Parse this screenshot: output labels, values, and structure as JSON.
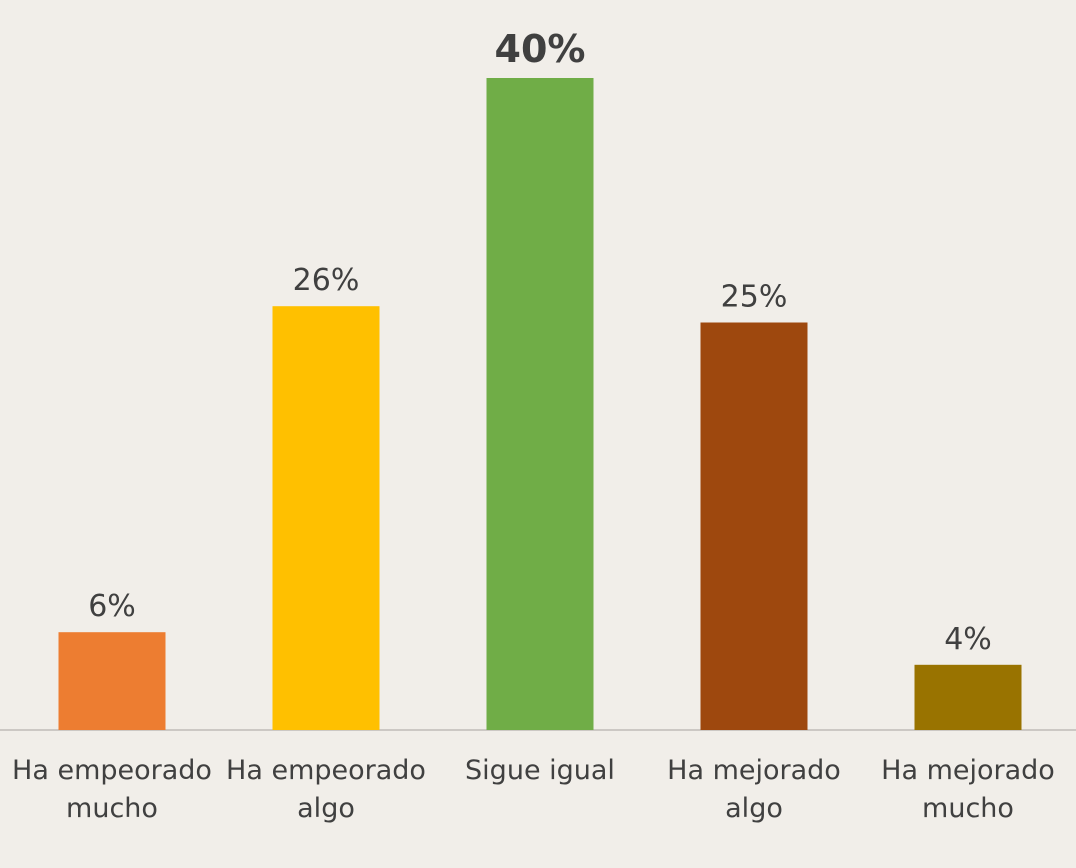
{
  "chart_data": {
    "type": "bar",
    "categories": [
      "Ha empeorado mucho",
      "Ha empeorado algo",
      "Sigue igual",
      "Ha mejorado algo",
      "Ha mejorado mucho"
    ],
    "values": [
      6,
      26,
      40,
      25,
      4
    ],
    "value_labels": [
      "6%",
      "26%",
      "40%",
      "25%",
      "4%"
    ],
    "colors": [
      "#ED7D31",
      "#FFC000",
      "#70AD47",
      "#9E480E",
      "#997300"
    ]
  }
}
